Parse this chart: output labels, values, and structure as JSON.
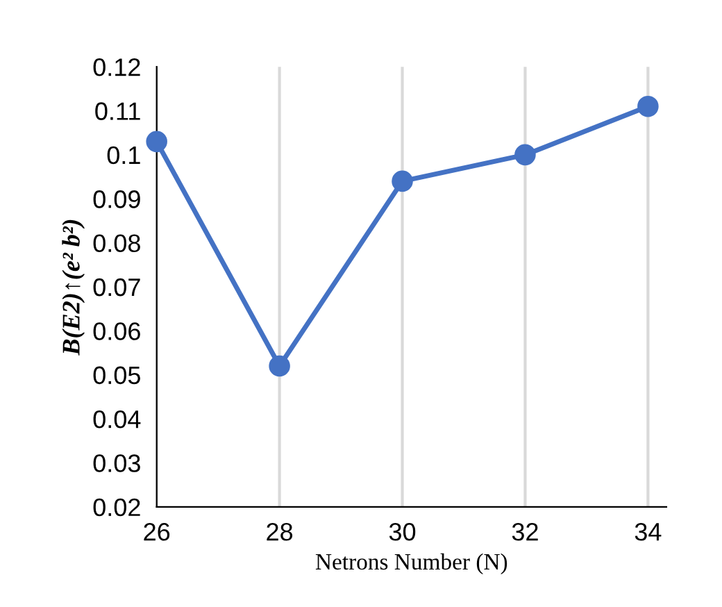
{
  "chart_data": {
    "type": "line",
    "xlabel": "Netrons Number (N)",
    "ylabel": "B(E2)↑(e² b²)",
    "x": [
      26,
      28,
      30,
      32,
      34
    ],
    "series": [
      {
        "color": "#4472c4",
        "values": [
          0.103,
          0.052,
          0.094,
          0.1,
          0.111
        ]
      }
    ],
    "xlim": [
      26,
      34.3
    ],
    "xticks": [
      26,
      28,
      30,
      32,
      34
    ],
    "ylim": [
      0.02,
      0.12
    ],
    "yticks": [
      0.02,
      0.03,
      0.04,
      0.05,
      0.06,
      0.07,
      0.08,
      0.09,
      {
        "value": 0.1,
        "label": "0.1"
      },
      0.11,
      0.12
    ],
    "grid": "x",
    "marker": "circle",
    "line_style": "solid",
    "legend": false
  }
}
